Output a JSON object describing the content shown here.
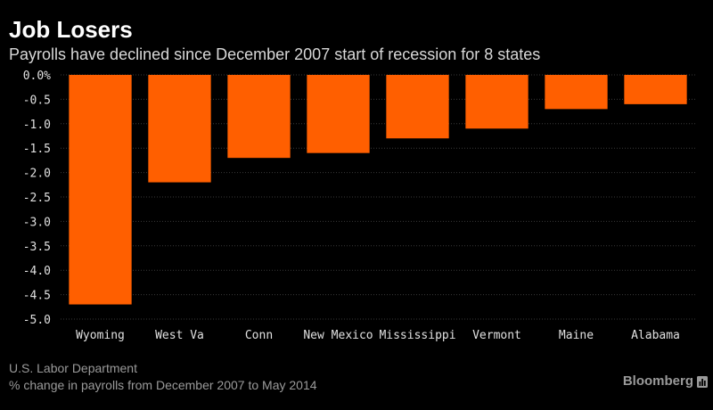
{
  "header": {
    "title": "Job Losers",
    "subtitle": "Payrolls have declined since December 2007 start of recession for 8 states"
  },
  "footer": {
    "source": "U.S. Labor Department",
    "note": "% change in payrolls from December 2007 to May 2014",
    "brand": "Bloomberg",
    "brand_icon": "bar-chart-icon"
  },
  "colors": {
    "background": "#000000",
    "bar": "#ff5f00",
    "gridline": "#3a3a3a",
    "text": "#ffffff",
    "axis_text": "#e0e0e0",
    "muted_text": "#9a9a9a"
  },
  "chart_data": {
    "type": "bar",
    "title": "Job Losers",
    "subtitle": "Payrolls have declined since December 2007 start of recession for 8 states",
    "categories": [
      "Wyoming",
      "West Va",
      "Conn",
      "New Mexico",
      "Mississippi",
      "Vermont",
      "Maine",
      "Alabama"
    ],
    "values": [
      -4.7,
      -2.2,
      -1.7,
      -1.6,
      -1.3,
      -1.1,
      -0.7,
      -0.6
    ],
    "ylim": [
      -5.0,
      0.0
    ],
    "yticks": [
      0.0,
      -0.5,
      -1.0,
      -1.5,
      -2.0,
      -2.5,
      -3.0,
      -3.5,
      -4.0,
      -4.5,
      -5.0
    ],
    "ytick_labels": [
      "0.0%",
      "-0.5",
      "-1.0",
      "-1.5",
      "-2.0",
      "-2.5",
      "-3.0",
      "-3.5",
      "-4.0",
      "-4.5",
      "-5.0"
    ],
    "grid": true,
    "legend": "none"
  }
}
